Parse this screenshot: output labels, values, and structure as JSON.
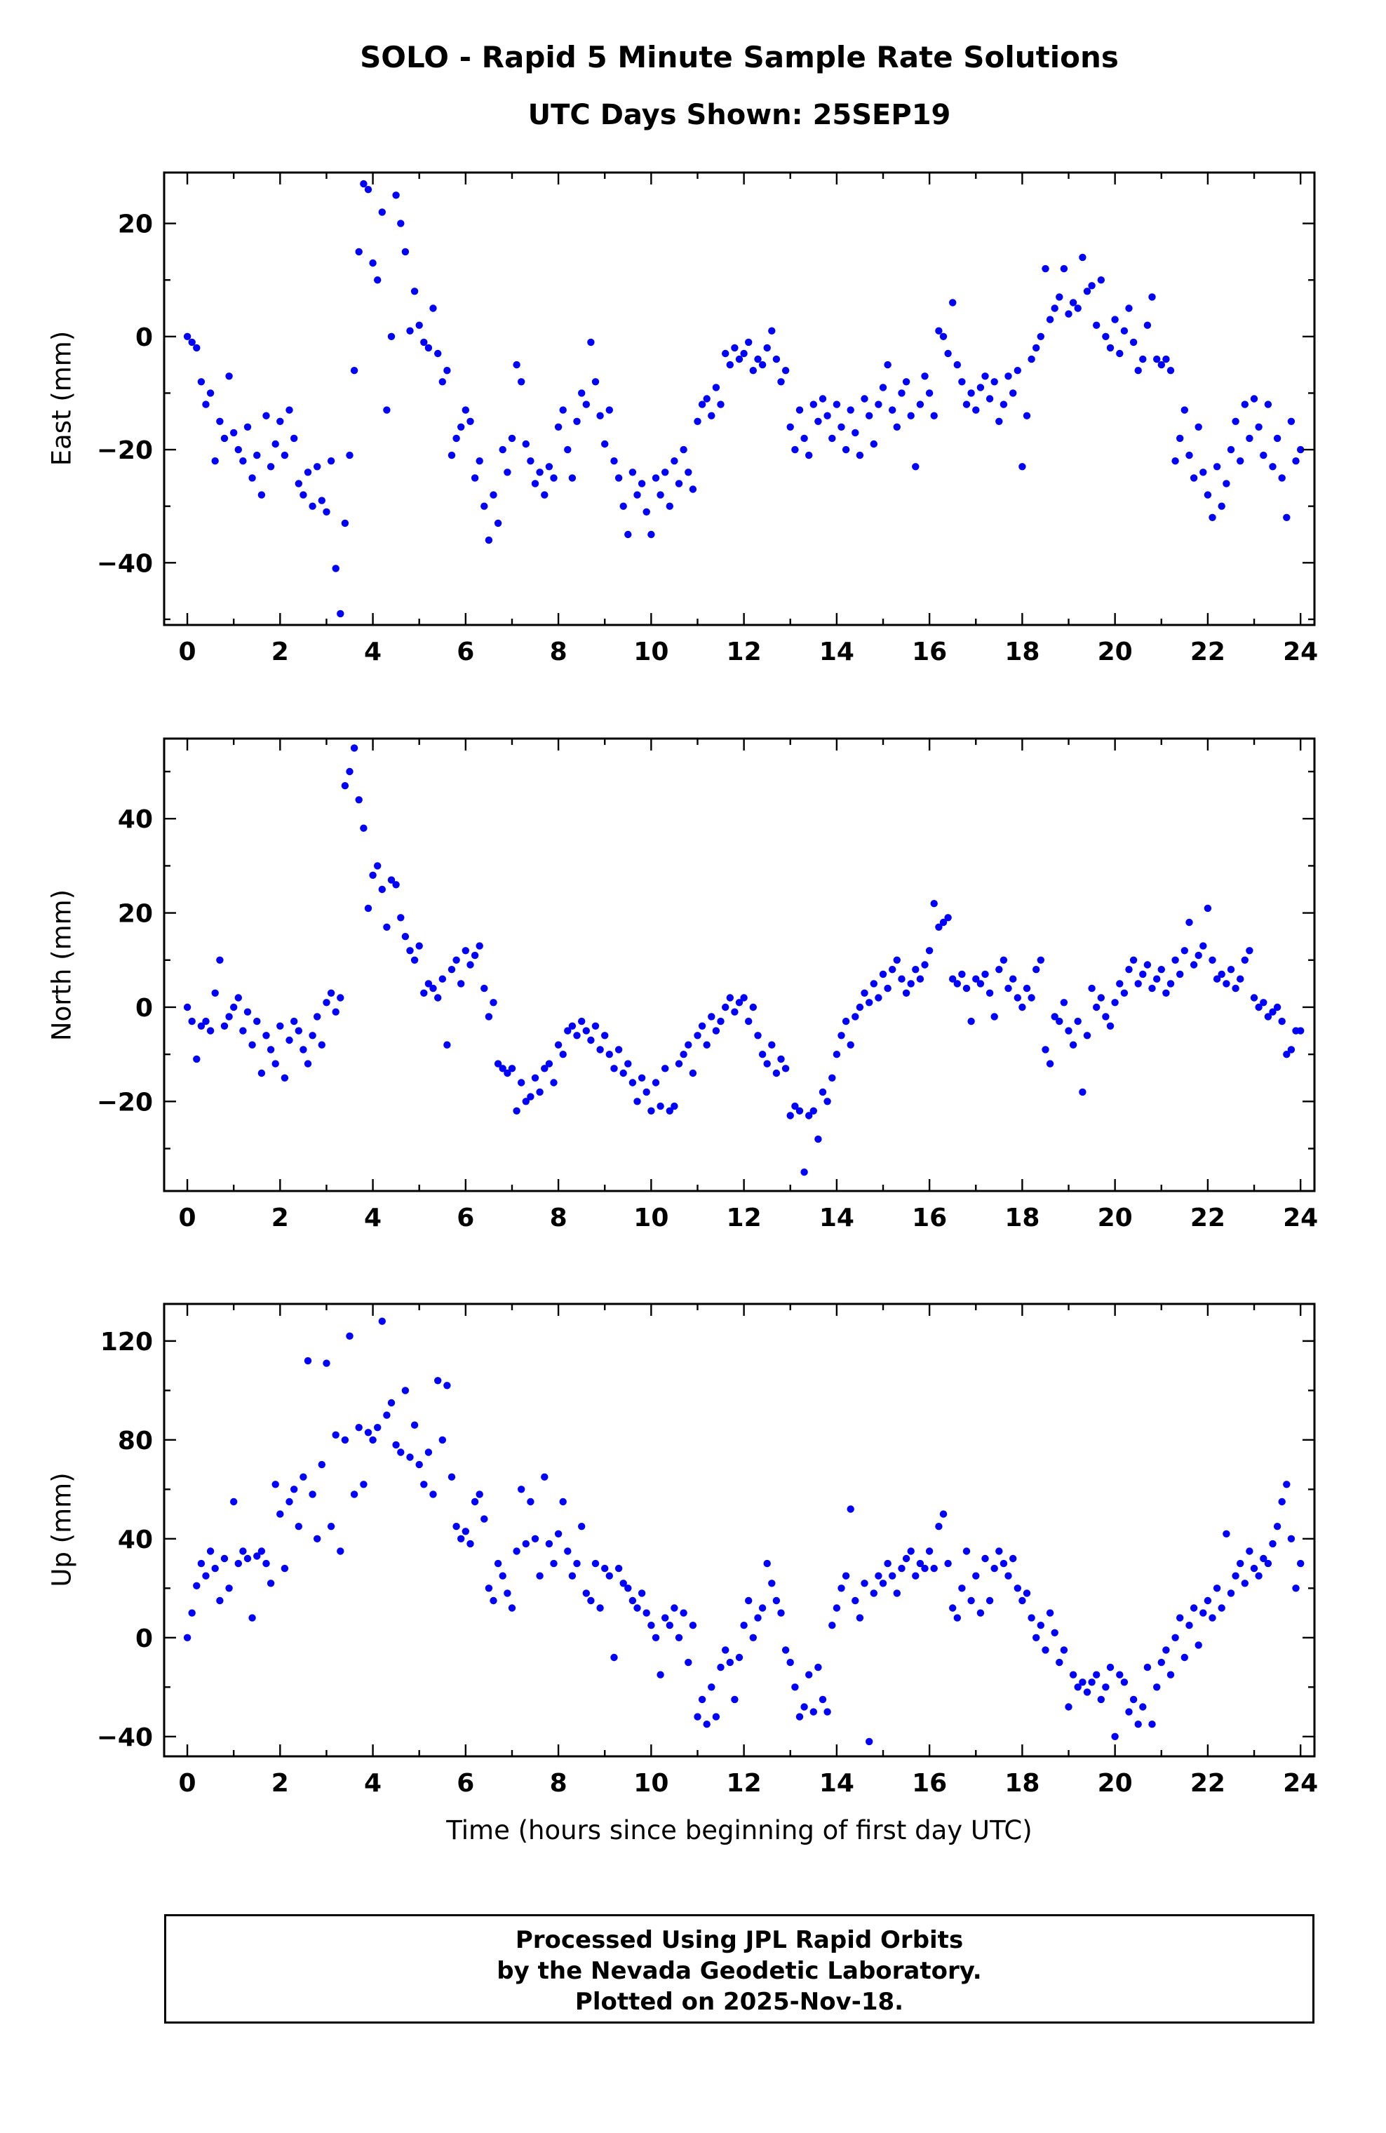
{
  "header": {
    "title": "SOLO - Rapid 5 Minute Sample Rate Solutions",
    "subtitle": "UTC Days Shown:  25SEP19"
  },
  "footer": {
    "lines": [
      "Processed Using JPL Rapid Orbits",
      "by the Nevada Geodetic Laboratory.",
      "Plotted on 2025-Nov-18."
    ]
  },
  "chart_data": {
    "type": "scatter",
    "title": "SOLO - Rapid 5 Minute Sample Rate Solutions",
    "subtitle": "UTC Days Shown:  25SEP19",
    "xlabel": "Time (hours since beginning of first day UTC)",
    "point_color": "#0000ff",
    "xlim": [
      -0.5,
      24.3
    ],
    "xticks": [
      0,
      2,
      4,
      6,
      8,
      10,
      12,
      14,
      16,
      18,
      20,
      22,
      24
    ],
    "x_minor": 1,
    "x_start": 0,
    "x_step": 0.1,
    "panels": [
      {
        "name": "east",
        "ylabel": "East (mm)",
        "ylim": [
          -51,
          29
        ],
        "yticks": [
          -40,
          -20,
          0,
          20
        ],
        "y_minor": 10,
        "values": [
          0,
          -1,
          -2,
          -8,
          -12,
          -10,
          -22,
          -15,
          -18,
          -7,
          -17,
          -20,
          -22,
          -16,
          -25,
          -21,
          -28,
          -14,
          -23,
          -19,
          -15,
          -21,
          -13,
          -18,
          -26,
          -28,
          -24,
          -30,
          -23,
          -29,
          -31,
          -22,
          -41,
          -49,
          -33,
          -21,
          -6,
          15,
          27,
          26,
          13,
          10,
          22,
          -13,
          0,
          25,
          20,
          15,
          1,
          8,
          2,
          -1,
          -2,
          5,
          -3,
          -8,
          -6,
          -21,
          -18,
          -16,
          -13,
          -15,
          -25,
          -22,
          -30,
          -36,
          -28,
          -33,
          -20,
          -24,
          -18,
          -5,
          -8,
          -19,
          -22,
          -26,
          -24,
          -28,
          -23,
          -25,
          -16,
          -13,
          -20,
          -25,
          -15,
          -10,
          -12,
          -1,
          -8,
          -14,
          -19,
          -13,
          -22,
          -25,
          -30,
          -35,
          -24,
          -28,
          -26,
          -31,
          -35,
          -25,
          -28,
          -24,
          -30,
          -22,
          -26,
          -20,
          -24,
          -27,
          -15,
          -12,
          -11,
          -14,
          -9,
          -12,
          -3,
          -5,
          -2,
          -4,
          -3,
          -1,
          -6,
          -4,
          -5,
          -2,
          1,
          -4,
          -8,
          -6,
          -16,
          -20,
          -13,
          -18,
          -21,
          -12,
          -15,
          -11,
          -14,
          -18,
          -12,
          -16,
          -20,
          -13,
          -17,
          -21,
          -11,
          -14,
          -19,
          -12,
          -9,
          -5,
          -13,
          -16,
          -10,
          -8,
          -14,
          -23,
          -12,
          -7,
          -10,
          -14,
          1,
          0,
          -3,
          6,
          -5,
          -8,
          -12,
          -10,
          -13,
          -9,
          -7,
          -11,
          -8,
          -15,
          -12,
          -7,
          -10,
          -6,
          -23,
          -14,
          -4,
          -2,
          0,
          12,
          3,
          5,
          7,
          12,
          4,
          6,
          5,
          14,
          8,
          9,
          2,
          10,
          0,
          -2,
          3,
          -3,
          1,
          5,
          -1,
          -6,
          -4,
          2,
          7,
          -4,
          -5,
          -4,
          -6,
          -22,
          -18,
          -13,
          -21,
          -25,
          -16,
          -24,
          -28,
          -32,
          -23,
          -30,
          -26,
          -20,
          -15,
          -22,
          -12,
          -18,
          -11,
          -16,
          -21,
          -12,
          -23,
          -18,
          -25,
          -32,
          -15,
          -22,
          -20
        ]
      },
      {
        "name": "north",
        "ylabel": "North (mm)",
        "ylim": [
          -39,
          57
        ],
        "yticks": [
          -20,
          0,
          20,
          40
        ],
        "y_minor": 10,
        "values": [
          0,
          -3,
          -11,
          -4,
          -3,
          -5,
          3,
          10,
          -4,
          -2,
          0,
          2,
          -5,
          -1,
          -8,
          -3,
          -14,
          -6,
          -9,
          -12,
          -4,
          -15,
          -7,
          -3,
          -5,
          -9,
          -12,
          -6,
          -2,
          -8,
          1,
          3,
          -1,
          2,
          47,
          50,
          55,
          44,
          38,
          21,
          28,
          30,
          25,
          17,
          27,
          26,
          19,
          15,
          12,
          10,
          13,
          3,
          5,
          4,
          2,
          6,
          -8,
          8,
          10,
          5,
          12,
          9,
          11,
          13,
          4,
          -2,
          1,
          -12,
          -13,
          -14,
          -13,
          -22,
          -16,
          -20,
          -19,
          -15,
          -18,
          -13,
          -12,
          -16,
          -8,
          -10,
          -5,
          -4,
          -6,
          -3,
          -5,
          -7,
          -4,
          -9,
          -6,
          -10,
          -13,
          -9,
          -14,
          -12,
          -16,
          -20,
          -15,
          -18,
          -22,
          -16,
          -21,
          -13,
          -22,
          -21,
          -12,
          -10,
          -8,
          -14,
          -6,
          -4,
          -8,
          -2,
          -5,
          -3,
          0,
          2,
          -1,
          1,
          2,
          -3,
          0,
          -6,
          -10,
          -12,
          -8,
          -14,
          -11,
          -13,
          -23,
          -21,
          -22,
          -35,
          -23,
          -22,
          -28,
          -18,
          -20,
          -15,
          -10,
          -6,
          -3,
          -8,
          -2,
          0,
          3,
          1,
          5,
          2,
          7,
          4,
          8,
          10,
          6,
          3,
          5,
          8,
          6,
          9,
          12,
          22,
          17,
          18,
          19,
          6,
          5,
          7,
          4,
          -3,
          6,
          5,
          7,
          3,
          -2,
          8,
          10,
          4,
          6,
          2,
          0,
          4,
          2,
          8,
          10,
          -9,
          -12,
          -2,
          -3,
          1,
          -5,
          -8,
          -3,
          -18,
          -6,
          4,
          0,
          2,
          -2,
          -4,
          1,
          5,
          3,
          8,
          10,
          5,
          7,
          9,
          4,
          6,
          8,
          3,
          5,
          10,
          7,
          12,
          18,
          9,
          11,
          13,
          21,
          10,
          6,
          7,
          5,
          8,
          4,
          6,
          10,
          12,
          2,
          0,
          1,
          -2,
          -1,
          0,
          -3,
          -10,
          -9,
          -5,
          -5
        ]
      },
      {
        "name": "up",
        "ylabel": "Up (mm)",
        "ylim": [
          -48,
          135
        ],
        "yticks": [
          -40,
          0,
          40,
          80,
          120
        ],
        "y_minor": 20,
        "values": [
          0,
          10,
          21,
          30,
          25,
          35,
          28,
          15,
          32,
          20,
          55,
          30,
          35,
          32,
          8,
          33,
          35,
          30,
          22,
          62,
          50,
          28,
          55,
          60,
          45,
          65,
          112,
          58,
          40,
          70,
          111,
          45,
          82,
          35,
          80,
          122,
          58,
          85,
          62,
          83,
          80,
          85,
          128,
          90,
          95,
          78,
          75,
          100,
          73,
          86,
          70,
          62,
          75,
          58,
          104,
          80,
          102,
          65,
          45,
          40,
          43,
          38,
          55,
          58,
          48,
          20,
          15,
          30,
          25,
          18,
          12,
          35,
          60,
          38,
          55,
          40,
          25,
          65,
          38,
          30,
          42,
          55,
          35,
          25,
          30,
          45,
          18,
          15,
          30,
          12,
          28,
          25,
          -8,
          28,
          22,
          20,
          15,
          12,
          18,
          10,
          5,
          0,
          -15,
          8,
          5,
          12,
          0,
          10,
          -10,
          5,
          -32,
          -25,
          -35,
          -20,
          -32,
          -12,
          -5,
          -10,
          -25,
          -8,
          5,
          15,
          0,
          8,
          12,
          30,
          22,
          15,
          10,
          -5,
          -10,
          -20,
          -32,
          -28,
          -15,
          -30,
          -12,
          -25,
          -30,
          5,
          12,
          20,
          25,
          52,
          15,
          8,
          22,
          -42,
          18,
          25,
          22,
          30,
          25,
          18,
          28,
          32,
          35,
          25,
          30,
          28,
          35,
          28,
          45,
          50,
          30,
          12,
          8,
          20,
          35,
          15,
          25,
          10,
          32,
          15,
          28,
          35,
          30,
          25,
          32,
          20,
          15,
          18,
          8,
          0,
          5,
          -5,
          10,
          2,
          -10,
          -5,
          -28,
          -15,
          -20,
          -18,
          -22,
          -18,
          -15,
          -25,
          -20,
          -12,
          -40,
          -15,
          -18,
          -30,
          -25,
          -35,
          -28,
          -12,
          -35,
          -20,
          -10,
          -5,
          -15,
          0,
          8,
          -8,
          5,
          12,
          -3,
          10,
          15,
          8,
          20,
          12,
          42,
          18,
          25,
          30,
          22,
          35,
          28,
          25,
          32,
          30,
          38,
          45,
          55,
          62,
          40,
          20,
          30
        ]
      }
    ]
  }
}
